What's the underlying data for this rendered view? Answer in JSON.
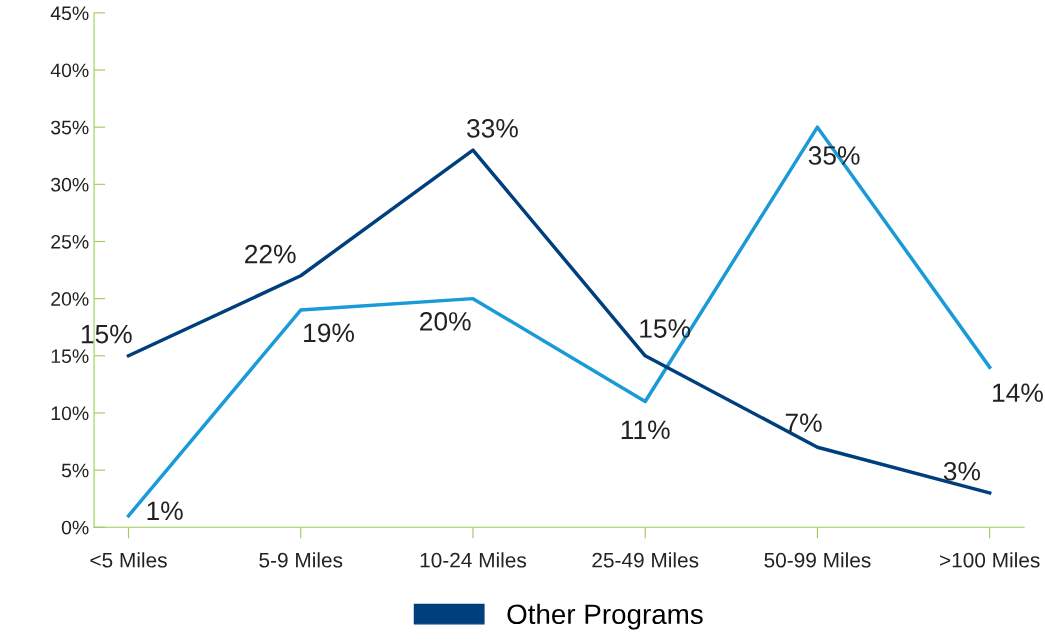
{
  "chart_data": {
    "type": "line",
    "categories": [
      "<5 Miles",
      "5-9 Miles",
      "10-24 Miles",
      "25-49 Miles",
      "50-99 Miles",
      ">100 Miles"
    ],
    "series": [
      {
        "color": "#1a9ad6",
        "values": [
          1,
          19,
          20,
          11,
          35,
          14
        ]
      },
      {
        "name": "Other Programs",
        "color": "#003f7d",
        "values": [
          15,
          22,
          33,
          15,
          7,
          3
        ]
      }
    ],
    "ylim": [
      0,
      45
    ],
    "yticks": [
      {
        "value": 0,
        "label": "0%"
      },
      {
        "value": 5,
        "label": "5%"
      },
      {
        "value": 10,
        "label": "10%"
      },
      {
        "value": 15,
        "label": "15%"
      },
      {
        "value": 20,
        "label": "20%"
      },
      {
        "value": 25,
        "label": "25%"
      },
      {
        "value": 30,
        "label": "30%"
      },
      {
        "value": 35,
        "label": "35%"
      },
      {
        "value": 40,
        "label": "40%"
      },
      {
        "value": 45,
        "label": "45%"
      }
    ],
    "value_labels": [
      [
        "1%",
        "19%",
        "20%",
        "11%",
        "35%",
        "14%"
      ],
      [
        "15%",
        "22%",
        "33%",
        "15%",
        "7%",
        "3%"
      ]
    ],
    "grid": false,
    "legend": "bottom",
    "marker": "none",
    "line_style": "solid"
  }
}
